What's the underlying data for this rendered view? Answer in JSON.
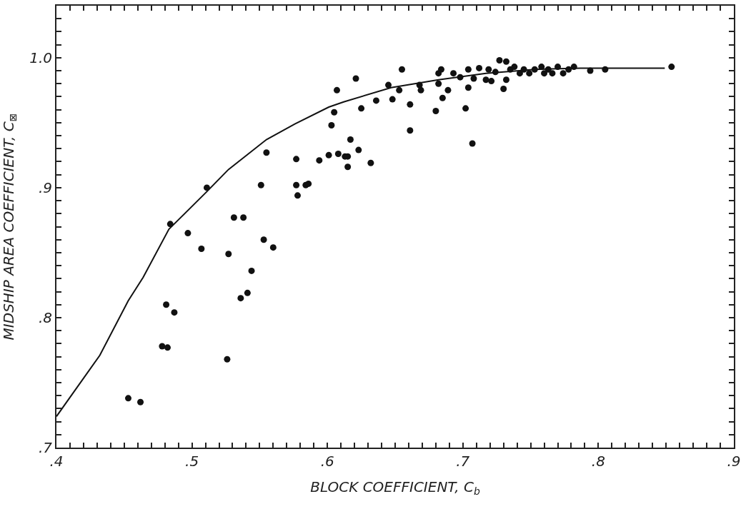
{
  "chart_data": {
    "type": "scatter",
    "xlabel": "BLOCK COEFFICIENT, C$_{b}$",
    "ylabel": "MIDSHIP AREA COEFFICIENT, C$_{⊠}$",
    "xlim": [
      0.4,
      0.9
    ],
    "ylim": [
      0.7,
      1.04
    ],
    "xticks": [
      {
        "value": 0.4,
        "label": ".4"
      },
      {
        "value": 0.41,
        "label": null
      },
      {
        "value": 0.42,
        "label": null
      },
      {
        "value": 0.43,
        "label": null
      },
      {
        "value": 0.44,
        "label": null
      },
      {
        "value": 0.45,
        "label": null
      },
      {
        "value": 0.46,
        "label": null
      },
      {
        "value": 0.47,
        "label": null
      },
      {
        "value": 0.48,
        "label": null
      },
      {
        "value": 0.49,
        "label": null
      },
      {
        "value": 0.5,
        "label": ".5"
      },
      {
        "value": 0.51,
        "label": null
      },
      {
        "value": 0.52,
        "label": null
      },
      {
        "value": 0.53,
        "label": null
      },
      {
        "value": 0.54,
        "label": null
      },
      {
        "value": 0.55,
        "label": null
      },
      {
        "value": 0.56,
        "label": null
      },
      {
        "value": 0.57,
        "label": null
      },
      {
        "value": 0.58,
        "label": null
      },
      {
        "value": 0.59,
        "label": null
      },
      {
        "value": 0.6,
        "label": ".6"
      },
      {
        "value": 0.61,
        "label": null
      },
      {
        "value": 0.62,
        "label": null
      },
      {
        "value": 0.63,
        "label": null
      },
      {
        "value": 0.64,
        "label": null
      },
      {
        "value": 0.65,
        "label": null
      },
      {
        "value": 0.66,
        "label": null
      },
      {
        "value": 0.67,
        "label": null
      },
      {
        "value": 0.68,
        "label": null
      },
      {
        "value": 0.69,
        "label": null
      },
      {
        "value": 0.7,
        "label": ".7"
      },
      {
        "value": 0.71,
        "label": null
      },
      {
        "value": 0.72,
        "label": null
      },
      {
        "value": 0.73,
        "label": null
      },
      {
        "value": 0.74,
        "label": null
      },
      {
        "value": 0.75,
        "label": null
      },
      {
        "value": 0.76,
        "label": null
      },
      {
        "value": 0.77,
        "label": null
      },
      {
        "value": 0.78,
        "label": null
      },
      {
        "value": 0.79,
        "label": null
      },
      {
        "value": 0.8,
        "label": ".8"
      },
      {
        "value": 0.81,
        "label": null
      },
      {
        "value": 0.82,
        "label": null
      },
      {
        "value": 0.83,
        "label": null
      },
      {
        "value": 0.84,
        "label": null
      },
      {
        "value": 0.85,
        "label": null
      },
      {
        "value": 0.86,
        "label": null
      },
      {
        "value": 0.87,
        "label": null
      },
      {
        "value": 0.88,
        "label": null
      },
      {
        "value": 0.89,
        "label": null
      },
      {
        "value": 0.9,
        "label": ".9"
      }
    ],
    "yticks": [
      {
        "value": 0.7,
        "label": ".7"
      },
      {
        "value": 0.71,
        "label": null
      },
      {
        "value": 0.72,
        "label": null
      },
      {
        "value": 0.73,
        "label": null
      },
      {
        "value": 0.74,
        "label": null
      },
      {
        "value": 0.75,
        "label": null
      },
      {
        "value": 0.76,
        "label": null
      },
      {
        "value": 0.77,
        "label": null
      },
      {
        "value": 0.78,
        "label": null
      },
      {
        "value": 0.79,
        "label": null
      },
      {
        "value": 0.8,
        "label": ".8"
      },
      {
        "value": 0.81,
        "label": null
      },
      {
        "value": 0.82,
        "label": null
      },
      {
        "value": 0.83,
        "label": null
      },
      {
        "value": 0.84,
        "label": null
      },
      {
        "value": 0.85,
        "label": null
      },
      {
        "value": 0.86,
        "label": null
      },
      {
        "value": 0.87,
        "label": null
      },
      {
        "value": 0.88,
        "label": null
      },
      {
        "value": 0.89,
        "label": null
      },
      {
        "value": 0.9,
        "label": ".9"
      },
      {
        "value": 0.91,
        "label": null
      },
      {
        "value": 0.92,
        "label": null
      },
      {
        "value": 0.93,
        "label": null
      },
      {
        "value": 0.94,
        "label": null
      },
      {
        "value": 0.95,
        "label": null
      },
      {
        "value": 0.96,
        "label": null
      },
      {
        "value": 0.97,
        "label": null
      },
      {
        "value": 0.98,
        "label": null
      },
      {
        "value": 0.99,
        "label": null
      },
      {
        "value": 1.0,
        "label": "1.0"
      },
      {
        "value": 1.01,
        "label": null
      },
      {
        "value": 1.02,
        "label": null
      },
      {
        "value": 1.03,
        "label": null
      },
      {
        "value": 1.04,
        "label": null
      }
    ],
    "grid": false,
    "series": [
      {
        "color": "#111111",
        "marker": "circle",
        "x": [
          0.453,
          0.462,
          0.478,
          0.482,
          0.481,
          0.487,
          0.484,
          0.497,
          0.507,
          0.511,
          0.526,
          0.527,
          0.531,
          0.538,
          0.536,
          0.541,
          0.544,
          0.553,
          0.56,
          0.551,
          0.555,
          0.577,
          0.584,
          0.586,
          0.578,
          0.577,
          0.594,
          0.601,
          0.608,
          0.613,
          0.615,
          0.615,
          0.617,
          0.623,
          0.632,
          0.603,
          0.605,
          0.607,
          0.621,
          0.625,
          0.661,
          0.68,
          0.702,
          0.707,
          0.636,
          0.645,
          0.648,
          0.653,
          0.655,
          0.661,
          0.668,
          0.669,
          0.682,
          0.682,
          0.684,
          0.685,
          0.689,
          0.693,
          0.698,
          0.704,
          0.704,
          0.708,
          0.712,
          0.717,
          0.721,
          0.719,
          0.724,
          0.727,
          0.732,
          0.73,
          0.732,
          0.735,
          0.738,
          0.742,
          0.745,
          0.749,
          0.753,
          0.758,
          0.76,
          0.763,
          0.766,
          0.77,
          0.774,
          0.778,
          0.782,
          0.794,
          0.805,
          0.854
        ],
        "values": [
          0.738,
          0.735,
          0.778,
          0.777,
          0.81,
          0.804,
          0.872,
          0.865,
          0.853,
          0.9,
          0.768,
          0.849,
          0.877,
          0.877,
          0.815,
          0.819,
          0.836,
          0.86,
          0.854,
          0.902,
          0.927,
          0.902,
          0.902,
          0.903,
          0.894,
          0.922,
          0.921,
          0.925,
          0.926,
          0.924,
          0.924,
          0.916,
          0.937,
          0.929,
          0.919,
          0.948,
          0.958,
          0.975,
          0.984,
          0.961,
          0.944,
          0.959,
          0.961,
          0.934,
          0.967,
          0.979,
          0.968,
          0.975,
          0.991,
          0.964,
          0.979,
          0.975,
          0.98,
          0.988,
          0.991,
          0.969,
          0.975,
          0.988,
          0.985,
          0.991,
          0.977,
          0.984,
          0.992,
          0.983,
          0.982,
          0.991,
          0.989,
          0.998,
          0.997,
          0.976,
          0.983,
          0.991,
          0.993,
          0.988,
          0.991,
          0.988,
          0.991,
          0.993,
          0.988,
          0.991,
          0.988,
          0.993,
          0.988,
          0.991,
          0.993,
          0.99,
          0.991,
          0.993
        ]
      },
      {
        "type": "line",
        "color": "#111111",
        "line_style": "solid",
        "x": [
          0.4,
          0.432,
          0.453,
          0.464,
          0.483,
          0.511,
          0.527,
          0.555,
          0.576,
          0.601,
          0.612,
          0.647,
          0.682,
          0.717,
          0.753,
          0.787,
          0.849
        ],
        "values": [
          0.724,
          0.771,
          0.813,
          0.831,
          0.868,
          0.897,
          0.914,
          0.937,
          0.949,
          0.962,
          0.966,
          0.977,
          0.983,
          0.988,
          0.991,
          0.992,
          0.992
        ]
      }
    ]
  }
}
